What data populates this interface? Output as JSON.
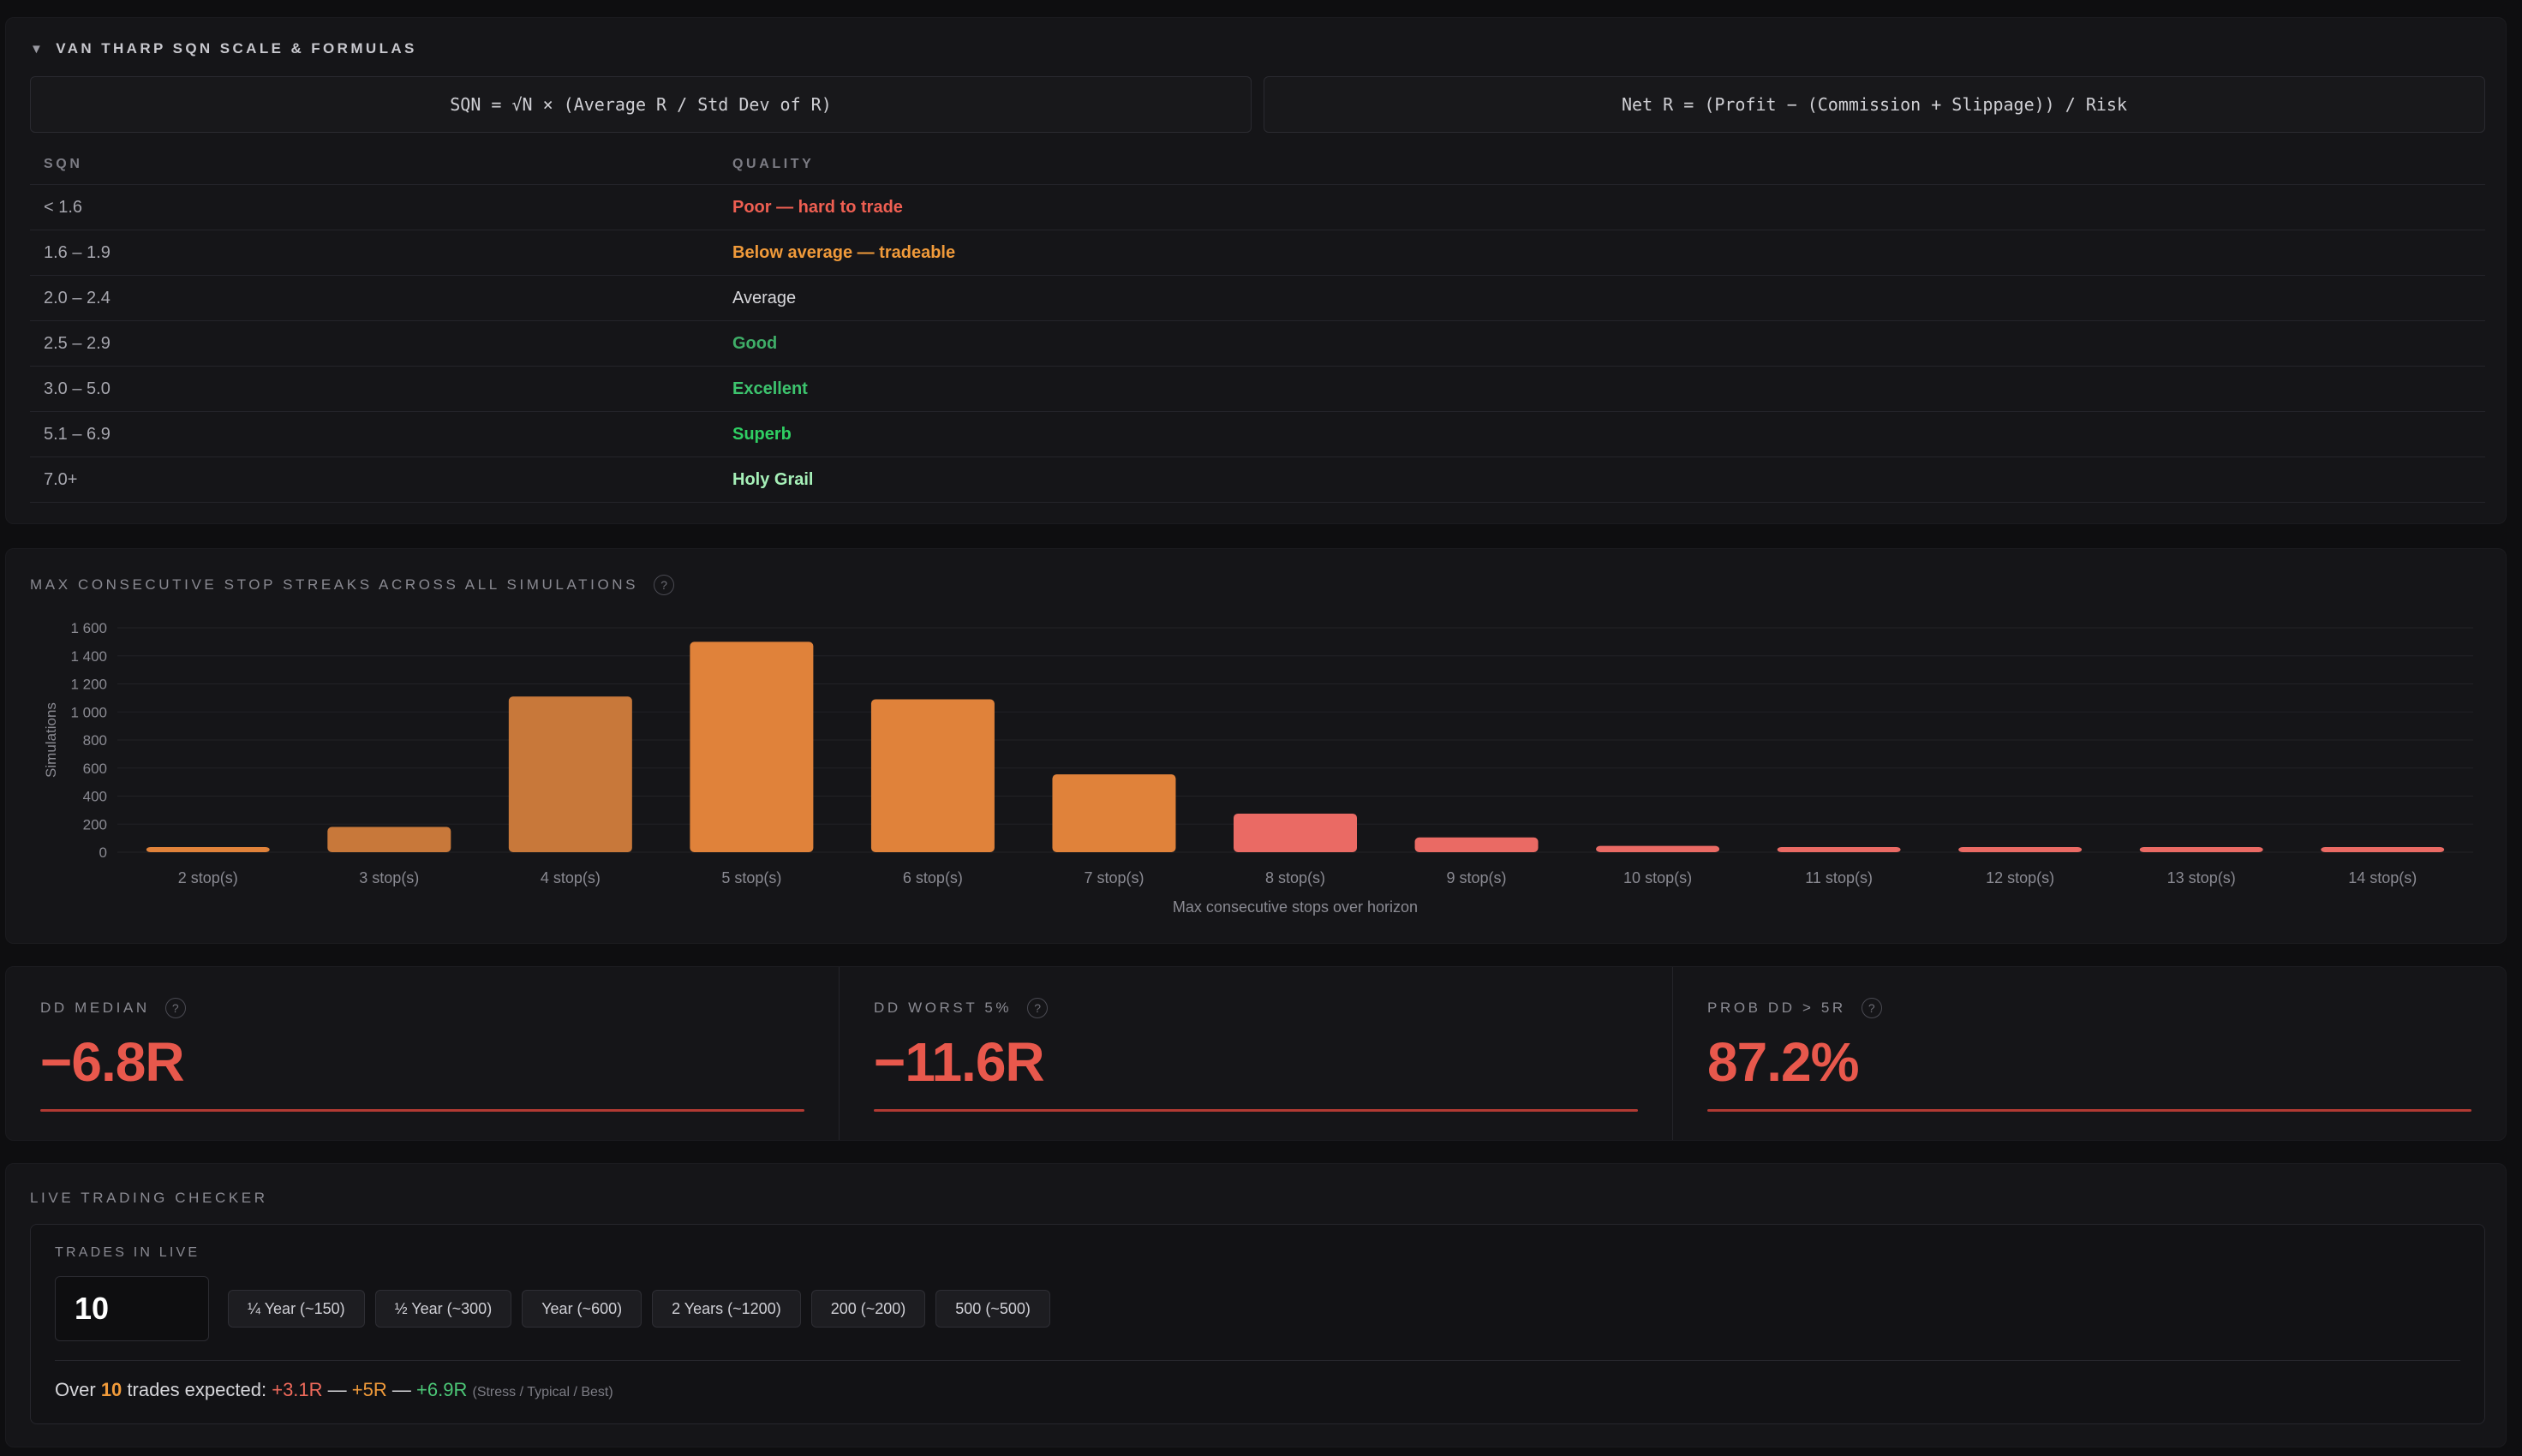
{
  "sqn": {
    "title": "VAN THARP SQN SCALE & FORMULAS",
    "formula_sqn": "SQN = √N × (Average R / Std Dev of R)",
    "formula_net_r": "Net R = (Profit − (Commission + Slippage)) / Risk",
    "col_sqn": "SQN",
    "col_quality": "QUALITY",
    "rows": [
      {
        "range": "< 1.6",
        "quality": "Poor — hard to trade",
        "color": "#ef5f52"
      },
      {
        "range": "1.6 – 1.9",
        "quality": "Below average — tradeable",
        "color": "#f09a3a"
      },
      {
        "range": "2.0 – 2.4",
        "quality": "Average",
        "color": "#d8d8dc"
      },
      {
        "range": "2.5 – 2.9",
        "quality": "Good",
        "color": "#3fae68"
      },
      {
        "range": "3.0 – 5.0",
        "quality": "Excellent",
        "color": "#3dc46e"
      },
      {
        "range": "5.1 – 6.9",
        "quality": "Superb",
        "color": "#2fcf63"
      },
      {
        "range": "7.0+",
        "quality": "Holy Grail",
        "color": "#a6f0b8"
      }
    ]
  },
  "streaks": {
    "title": "MAX CONSECUTIVE STOP STREAKS ACROSS ALL SIMULATIONS",
    "help": "?"
  },
  "chart_data": {
    "type": "bar",
    "categories": [
      "2 stop(s)",
      "3 stop(s)",
      "4 stop(s)",
      "5 stop(s)",
      "6 stop(s)",
      "7 stop(s)",
      "8 stop(s)",
      "9 stop(s)",
      "10 stop(s)",
      "11 stop(s)",
      "12 stop(s)",
      "13 stop(s)",
      "14 stop(s)"
    ],
    "values": [
      35,
      180,
      1110,
      1500,
      1090,
      555,
      275,
      105,
      45,
      30,
      30,
      30,
      30
    ],
    "colors": [
      "#e0823a",
      "#c8783a",
      "#c8783a",
      "#e0823a",
      "#e0823a",
      "#e0823a",
      "#ea6a64",
      "#ea6a64",
      "#ea6a64",
      "#ea6a64",
      "#ea6a64",
      "#ea6a64",
      "#ea6a64"
    ],
    "xlabel": "Max consecutive stops over horizon",
    "ylabel": "Simulations",
    "ylim": [
      0,
      1600
    ],
    "yticks": [
      0,
      200,
      400,
      600,
      800,
      1000,
      1200,
      1400,
      1600
    ],
    "ytick_labels": [
      "0",
      "200",
      "400",
      "600",
      "800",
      "1 000",
      "1 200",
      "1 400",
      "1 600"
    ],
    "grid": true
  },
  "dd": {
    "median_label": "DD MEDIAN",
    "median_value": "−6.8R",
    "worst_label": "DD WORST 5%",
    "worst_value": "−11.6R",
    "prob_label": "PROB DD > 5R",
    "prob_value": "87.2%",
    "help": "?"
  },
  "live": {
    "title": "LIVE TRADING CHECKER",
    "trades_label": "TRADES IN LIVE",
    "trades_value": "10",
    "presets": [
      "¼ Year (~150)",
      "½ Year (~300)",
      "Year (~600)",
      "2 Years (~1200)",
      "200 (~200)",
      "500 (~500)"
    ],
    "expect_prefix": "Over",
    "expect_n": "10",
    "expect_mid": "trades expected:",
    "stress": "+3.1R",
    "sep": "—",
    "typical": "+5R",
    "best": "+6.9R",
    "note": "(Stress / Typical / Best)"
  }
}
